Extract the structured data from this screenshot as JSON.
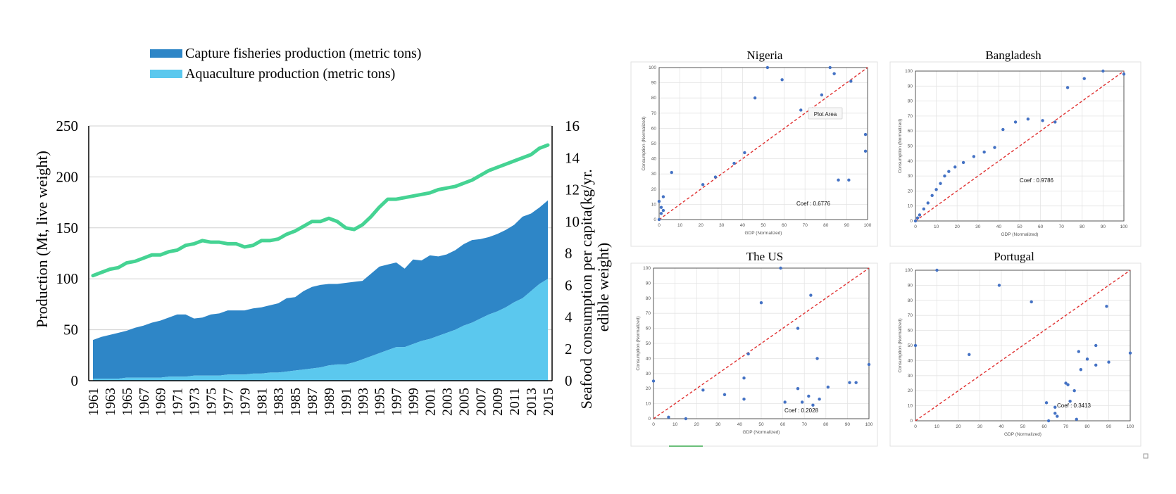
{
  "colors": {
    "capture": "#2E86C7",
    "aquaculture": "#5BC8EE",
    "consumption_line": "#45D393",
    "grid": "#D0D0D0",
    "scatter_point": "#4472C4",
    "diagonal": "#E03030"
  },
  "chart_data": [
    {
      "type": "area",
      "legend_placement": "top-left",
      "legend": [
        {
          "label": "Capture fisheries production (metric tons)",
          "color": "#2E86C7"
        },
        {
          "label": "Aquaculture production (metric tons)",
          "color": "#5BC8EE"
        }
      ],
      "ylabel": "Production (Mt, live weight)",
      "y2label": "Seafood consumption per capita(kg/yr.  edible weight)",
      "ylim": [
        0,
        250
      ],
      "y2lim": [
        0,
        16
      ],
      "y_ticks": [
        "0",
        "50",
        "100",
        "150",
        "200",
        "250"
      ],
      "y2_ticks": [
        "0",
        "2",
        "4",
        "6",
        "8",
        "10",
        "12",
        "14",
        "16"
      ],
      "x_tick_labels": [
        "1961",
        "1963",
        "1965",
        "1967",
        "1969",
        "1971",
        "1973",
        "1975",
        "1977",
        "1979",
        "1981",
        "1983",
        "1985",
        "1987",
        "1989",
        "1991",
        "1993",
        "1995",
        "1997",
        "1999",
        "2001",
        "2003",
        "2005",
        "2007",
        "2009",
        "2011",
        "2013",
        "2015"
      ],
      "x": [
        1961,
        1962,
        1963,
        1964,
        1965,
        1966,
        1967,
        1968,
        1969,
        1970,
        1971,
        1972,
        1973,
        1974,
        1975,
        1976,
        1977,
        1978,
        1979,
        1980,
        1981,
        1982,
        1983,
        1984,
        1985,
        1986,
        1987,
        1988,
        1989,
        1990,
        1991,
        1992,
        1993,
        1994,
        1995,
        1996,
        1997,
        1998,
        1999,
        2000,
        2001,
        2002,
        2003,
        2004,
        2005,
        2006,
        2007,
        2008,
        2009,
        2010,
        2011,
        2012,
        2013,
        2014,
        2015
      ],
      "series": [
        {
          "name": "Aquaculture production (metric tons)",
          "kind": "stacked-area",
          "values": [
            2,
            2,
            2,
            2,
            3,
            3,
            3,
            3,
            3,
            4,
            4,
            4,
            5,
            5,
            5,
            5,
            6,
            6,
            6,
            7,
            7,
            8,
            8,
            9,
            10,
            11,
            12,
            13,
            15,
            16,
            16,
            18,
            21,
            24,
            27,
            30,
            33,
            33,
            36,
            39,
            41,
            44,
            47,
            50,
            54,
            57,
            61,
            65,
            68,
            72,
            77,
            81,
            88,
            95,
            100
          ]
        },
        {
          "name": "Capture fisheries production (metric tons)",
          "kind": "stacked-area",
          "values": [
            38,
            41,
            43,
            45,
            46,
            49,
            51,
            54,
            56,
            58,
            61,
            61,
            56,
            57,
            60,
            61,
            63,
            63,
            63,
            64,
            65,
            66,
            68,
            72,
            72,
            77,
            80,
            81,
            80,
            79,
            80,
            79,
            77,
            81,
            85,
            84,
            83,
            77,
            83,
            79,
            82,
            78,
            77,
            78,
            80,
            81,
            78,
            76,
            76,
            76,
            76,
            80,
            76,
            75,
            77
          ]
        },
        {
          "name": "Seafood consumption per capita",
          "kind": "line",
          "axis": "right",
          "values": [
            6.6,
            6.8,
            7.0,
            7.1,
            7.4,
            7.5,
            7.7,
            7.9,
            7.9,
            8.1,
            8.2,
            8.5,
            8.6,
            8.8,
            8.7,
            8.7,
            8.6,
            8.6,
            8.4,
            8.5,
            8.8,
            8.8,
            8.9,
            9.2,
            9.4,
            9.7,
            10.0,
            10.0,
            10.2,
            10.0,
            9.6,
            9.5,
            9.8,
            10.3,
            10.9,
            11.4,
            11.4,
            11.5,
            11.6,
            11.7,
            11.8,
            12.0,
            12.1,
            12.2,
            12.4,
            12.6,
            12.9,
            13.2,
            13.4,
            13.6,
            13.8,
            14.0,
            14.2,
            14.6,
            14.8
          ]
        }
      ]
    },
    {
      "type": "scatter",
      "title": "Nigeria",
      "xlabel": "GDP (Normalized)",
      "ylabel": "Consumption (Normalized)",
      "xlim": [
        0,
        100
      ],
      "ylim": [
        0,
        100
      ],
      "annotation": "Coef : 0.6776",
      "tooltip": "Plot Area",
      "points": [
        [
          0,
          0
        ],
        [
          0,
          12
        ],
        [
          1,
          8
        ],
        [
          1,
          4
        ],
        [
          2,
          15
        ],
        [
          2,
          6
        ],
        [
          6,
          31
        ],
        [
          21,
          23
        ],
        [
          27,
          28
        ],
        [
          36,
          37
        ],
        [
          41,
          44
        ],
        [
          46,
          80
        ],
        [
          52,
          100
        ],
        [
          59,
          92
        ],
        [
          68,
          72
        ],
        [
          78,
          82
        ],
        [
          82,
          100
        ],
        [
          84,
          96
        ],
        [
          86,
          26
        ],
        [
          91,
          26
        ],
        [
          92,
          91
        ],
        [
          99,
          56
        ],
        [
          99,
          45
        ]
      ],
      "diagonal": true
    },
    {
      "type": "scatter",
      "title": "Bangladesh",
      "xlabel": "GDP (Normalized)",
      "ylabel": "Consumption (Normalized)",
      "xlim": [
        0,
        100
      ],
      "ylim": [
        0,
        100
      ],
      "annotation": "Coef : 0.9786",
      "points": [
        [
          0,
          0
        ],
        [
          1,
          2
        ],
        [
          2,
          4
        ],
        [
          4,
          8
        ],
        [
          6,
          12
        ],
        [
          8,
          17
        ],
        [
          10,
          21
        ],
        [
          12,
          25
        ],
        [
          14,
          30
        ],
        [
          16,
          33
        ],
        [
          19,
          36
        ],
        [
          23,
          39
        ],
        [
          28,
          43
        ],
        [
          33,
          46
        ],
        [
          38,
          49
        ],
        [
          42,
          61
        ],
        [
          48,
          66
        ],
        [
          54,
          68
        ],
        [
          61,
          67
        ],
        [
          67,
          66
        ],
        [
          73,
          89
        ],
        [
          81,
          95
        ],
        [
          90,
          100
        ],
        [
          100,
          98
        ]
      ],
      "diagonal": true
    },
    {
      "type": "scatter",
      "title": "The US",
      "xlabel": "GDP (Normalized)",
      "ylabel": "Consumption (Normalized)",
      "xlim": [
        0,
        100
      ],
      "ylim": [
        0,
        100
      ],
      "annotation": "Coef : 0.2028",
      "points": [
        [
          0,
          25
        ],
        [
          7,
          1
        ],
        [
          15,
          0
        ],
        [
          23,
          19
        ],
        [
          33,
          16
        ],
        [
          42,
          13
        ],
        [
          42,
          27
        ],
        [
          44,
          43
        ],
        [
          50,
          77
        ],
        [
          59,
          100
        ],
        [
          61,
          11
        ],
        [
          67,
          60
        ],
        [
          67,
          20
        ],
        [
          69,
          11
        ],
        [
          72,
          15
        ],
        [
          73,
          82
        ],
        [
          74,
          9
        ],
        [
          76,
          40
        ],
        [
          77,
          13
        ],
        [
          81,
          21
        ],
        [
          91,
          24
        ],
        [
          94,
          24
        ],
        [
          100,
          36
        ]
      ],
      "diagonal": true
    },
    {
      "type": "scatter",
      "title": "Portugal",
      "xlabel": "GDP (Normalized)",
      "ylabel": "Consumption (Normalized)",
      "xlim": [
        0,
        100
      ],
      "ylim": [
        0,
        100
      ],
      "annotation": "Coef : 0.3413",
      "points": [
        [
          0,
          50
        ],
        [
          10,
          100
        ],
        [
          25,
          44
        ],
        [
          39,
          90
        ],
        [
          54,
          79
        ],
        [
          61,
          12
        ],
        [
          62,
          0
        ],
        [
          65,
          9
        ],
        [
          65,
          5
        ],
        [
          66,
          3
        ],
        [
          70,
          25
        ],
        [
          71,
          24
        ],
        [
          72,
          13
        ],
        [
          74,
          20
        ],
        [
          75,
          1
        ],
        [
          76,
          46
        ],
        [
          77,
          34
        ],
        [
          80,
          41
        ],
        [
          84,
          50
        ],
        [
          84,
          37
        ],
        [
          89,
          76
        ],
        [
          90,
          39
        ],
        [
          100,
          45
        ]
      ],
      "diagonal": true
    }
  ]
}
